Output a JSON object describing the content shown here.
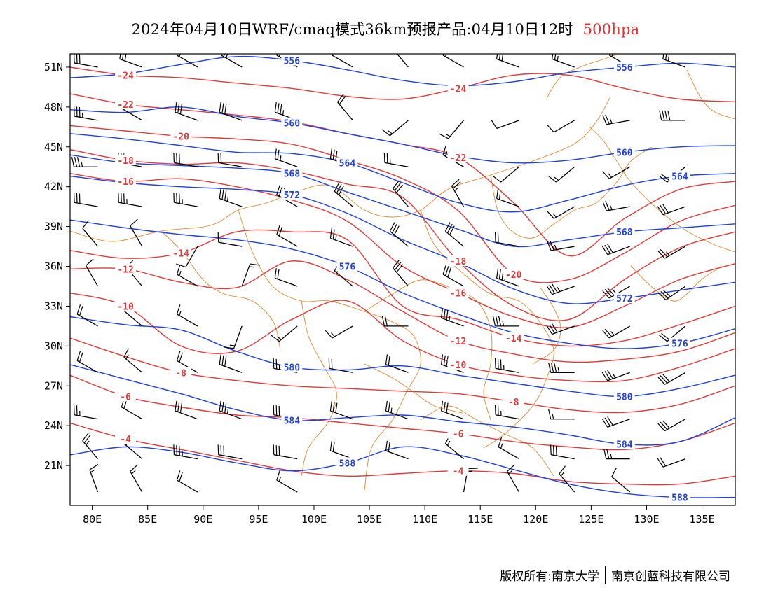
{
  "title": {
    "main": "2024年04月10日WRF/cmaq模式36km预报产品:04月10日12时",
    "level": "500hpa",
    "level_color": "#e03030"
  },
  "footer": {
    "copyright": "版权所有:南京大学",
    "company": "南京创蓝科技有限公司"
  },
  "map": {
    "lon_range": [
      78,
      138
    ],
    "lat_range": [
      18,
      52
    ],
    "lat_ticks": [
      "51N",
      "48N",
      "45N",
      "42N",
      "39N",
      "36N",
      "33N",
      "30N",
      "27N",
      "24N",
      "21N"
    ],
    "lon_ticks": [
      "80E",
      "85E",
      "90E",
      "95E",
      "100E",
      "105E",
      "110E",
      "115E",
      "120E",
      "125E",
      "130E",
      "135E"
    ],
    "colors": {
      "height_contour": "#2040e0",
      "temperature_contour": "#e03a3a",
      "border": "#e08a30",
      "wind": "#000000"
    },
    "height_contours": [
      {
        "label": "556",
        "lats": [
          50.2,
          50.5,
          51.2,
          51.8,
          51.5,
          50.8,
          50.0,
          49.6,
          49.9,
          50.6,
          51.0,
          51.3,
          51.0
        ]
      },
      {
        "label": "560",
        "lats": [
          47.8,
          47.6,
          48.0,
          47.3,
          46.8,
          46.0,
          45.2,
          44.3,
          43.8,
          44.0,
          44.6,
          45.0,
          45.1
        ]
      },
      {
        "label": "564",
        "lats": [
          46.0,
          45.6,
          45.1,
          44.6,
          44.5,
          43.8,
          42.3,
          40.8,
          40.1,
          41.0,
          42.1,
          42.8,
          43.0
        ]
      },
      {
        "label": "568",
        "lats": [
          44.4,
          43.8,
          43.6,
          43.4,
          43.0,
          41.6,
          40.2,
          38.8,
          37.5,
          38.0,
          38.6,
          38.9,
          39.2
        ]
      },
      {
        "label": "572",
        "lats": [
          42.8,
          42.3,
          42.0,
          41.8,
          41.4,
          40.0,
          38.0,
          36.3,
          34.3,
          33.2,
          33.6,
          34.2,
          34.8
        ]
      },
      {
        "label": "576",
        "lats": [
          39.5,
          38.9,
          38.4,
          38.0,
          37.3,
          36.0,
          34.0,
          32.4,
          31.0,
          30.2,
          29.8,
          30.2,
          31.3
        ]
      },
      {
        "label": "580",
        "lats": [
          32.2,
          31.6,
          31.2,
          29.6,
          28.4,
          28.2,
          28.5,
          27.8,
          27.2,
          26.6,
          26.2,
          26.8,
          27.8
        ]
      },
      {
        "label": "584",
        "lats": [
          28.6,
          27.5,
          26.4,
          25.2,
          24.4,
          24.6,
          24.8,
          24.3,
          23.9,
          23.3,
          22.6,
          22.8,
          24.6
        ]
      },
      {
        "label": "588",
        "lats": [
          21.8,
          22.4,
          22.0,
          21.2,
          20.6,
          21.2,
          22.4,
          21.8,
          20.7,
          19.6,
          18.9,
          18.6,
          18.6
        ]
      }
    ],
    "temperature_contours": [
      {
        "label": "-24",
        "lats": [
          51.0,
          50.4,
          50.2,
          49.8,
          49.4,
          48.8,
          48.6,
          49.4,
          50.4,
          50.4,
          49.4,
          48.6,
          48.4
        ]
      },
      {
        "label": "-22",
        "lats": [
          49.0,
          48.2,
          47.8,
          47.4,
          46.9,
          46.0,
          45.2,
          44.2,
          40.8,
          36.8,
          39.6,
          41.8,
          42.4
        ]
      },
      {
        "label": "-20",
        "lats": [
          46.6,
          46.2,
          45.8,
          45.6,
          45.2,
          44.0,
          42.6,
          40.2,
          35.4,
          35.0,
          37.0,
          39.4,
          40.6
        ]
      },
      {
        "label": "-18",
        "lats": [
          44.8,
          44.0,
          43.7,
          43.8,
          43.2,
          42.2,
          41.2,
          36.4,
          33.0,
          32.0,
          35.0,
          37.4,
          38.6
        ]
      },
      {
        "label": "-16",
        "lats": [
          43.0,
          42.4,
          42.6,
          42.0,
          41.0,
          39.4,
          36.0,
          34.0,
          32.2,
          31.4,
          33.0,
          35.0,
          36.2
        ]
      },
      {
        "label": "-14",
        "lats": [
          37.2,
          36.6,
          37.0,
          38.6,
          38.6,
          38.0,
          33.0,
          32.0,
          30.6,
          30.0,
          30.4,
          31.6,
          33.0
        ]
      },
      {
        "label": "-12",
        "lats": [
          35.8,
          35.8,
          34.8,
          34.4,
          36.4,
          35.0,
          32.6,
          30.4,
          29.4,
          28.8,
          29.0,
          29.6,
          31.0
        ]
      },
      {
        "label": "-10",
        "lats": [
          34.0,
          33.0,
          30.0,
          29.6,
          32.0,
          33.4,
          30.4,
          28.6,
          27.8,
          27.4,
          27.4,
          28.4,
          29.8
        ]
      },
      {
        "label": "-8",
        "lats": [
          30.6,
          29.2,
          28.0,
          27.4,
          27.0,
          26.8,
          26.6,
          26.4,
          25.8,
          25.2,
          25.0,
          25.6,
          27.0
        ]
      },
      {
        "label": "-6",
        "lats": [
          27.8,
          26.2,
          25.4,
          24.8,
          24.6,
          24.2,
          23.8,
          23.4,
          22.8,
          22.4,
          22.2,
          22.8,
          24.2
        ]
      },
      {
        "label": "-4",
        "lats": [
          24.2,
          23.0,
          22.2,
          21.4,
          20.6,
          20.2,
          20.4,
          20.6,
          20.4,
          19.8,
          19.6,
          19.6,
          20.2
        ]
      }
    ],
    "wind_barbs": [
      {
        "lon": 80.5,
        "lat": 51,
        "dir": 280,
        "spd": 30
      },
      {
        "lon": 84.5,
        "lat": 51,
        "dir": 290,
        "spd": 30
      },
      {
        "lon": 89.5,
        "lat": 51,
        "dir": 300,
        "spd": 20
      },
      {
        "lon": 93.5,
        "lat": 51,
        "dir": 300,
        "spd": 25
      },
      {
        "lon": 98.5,
        "lat": 51,
        "dir": 300,
        "spd": 20
      },
      {
        "lon": 103.5,
        "lat": 51,
        "dir": 300,
        "spd": 10
      },
      {
        "lon": 108.5,
        "lat": 51,
        "dir": 320,
        "spd": 15
      },
      {
        "lon": 113.5,
        "lat": 51,
        "dir": 300,
        "spd": 15
      },
      {
        "lon": 118.5,
        "lat": 51,
        "dir": 290,
        "spd": 30
      },
      {
        "lon": 123.5,
        "lat": 51,
        "dir": 290,
        "spd": 25
      },
      {
        "lon": 128.5,
        "lat": 51,
        "dir": 300,
        "spd": 15
      },
      {
        "lon": 133.5,
        "lat": 51,
        "dir": 290,
        "spd": 30
      },
      {
        "lon": 80.5,
        "lat": 47,
        "dir": 280,
        "spd": 35
      },
      {
        "lon": 84.5,
        "lat": 47,
        "dir": 300,
        "spd": 20
      },
      {
        "lon": 89.5,
        "lat": 47,
        "dir": 290,
        "spd": 30
      },
      {
        "lon": 93.5,
        "lat": 47,
        "dir": 290,
        "spd": 30
      },
      {
        "lon": 98.5,
        "lat": 47,
        "dir": 290,
        "spd": 35
      },
      {
        "lon": 103.5,
        "lat": 47,
        "dir": 320,
        "spd": 20
      },
      {
        "lon": 108.5,
        "lat": 47,
        "dir": 230,
        "spd": 15
      },
      {
        "lon": 113.5,
        "lat": 47,
        "dir": 220,
        "spd": 15
      },
      {
        "lon": 118.5,
        "lat": 47,
        "dir": 250,
        "spd": 10
      },
      {
        "lon": 123.5,
        "lat": 47,
        "dir": 240,
        "spd": 10
      },
      {
        "lon": 128.5,
        "lat": 47,
        "dir": 260,
        "spd": 25
      },
      {
        "lon": 133.5,
        "lat": 47,
        "dir": 270,
        "spd": 40
      },
      {
        "lon": 80.5,
        "lat": 43.5,
        "dir": 270,
        "spd": 35
      },
      {
        "lon": 84.5,
        "lat": 43.5,
        "dir": 280,
        "spd": 35
      },
      {
        "lon": 89.5,
        "lat": 43.5,
        "dir": 280,
        "spd": 30
      },
      {
        "lon": 93.5,
        "lat": 43.5,
        "dir": 280,
        "spd": 20
      },
      {
        "lon": 98.5,
        "lat": 43.5,
        "dir": 290,
        "spd": 25
      },
      {
        "lon": 103.5,
        "lat": 43.5,
        "dir": 290,
        "spd": 30
      },
      {
        "lon": 108.5,
        "lat": 43.5,
        "dir": 280,
        "spd": 25
      },
      {
        "lon": 113.5,
        "lat": 43.5,
        "dir": 300,
        "spd": 15
      },
      {
        "lon": 118.5,
        "lat": 43.5,
        "dir": 230,
        "spd": 10
      },
      {
        "lon": 123.5,
        "lat": 43.5,
        "dir": 230,
        "spd": 15
      },
      {
        "lon": 128.5,
        "lat": 43.5,
        "dir": 240,
        "spd": 15
      },
      {
        "lon": 133.5,
        "lat": 43.5,
        "dir": 230,
        "spd": 20
      },
      {
        "lon": 80.5,
        "lat": 40.5,
        "dir": 280,
        "spd": 30
      },
      {
        "lon": 84.5,
        "lat": 40.5,
        "dir": 280,
        "spd": 35
      },
      {
        "lon": 89.5,
        "lat": 40.5,
        "dir": 280,
        "spd": 35
      },
      {
        "lon": 93.5,
        "lat": 40.5,
        "dir": 290,
        "spd": 35
      },
      {
        "lon": 98.5,
        "lat": 40.5,
        "dir": 300,
        "spd": 30
      },
      {
        "lon": 103.5,
        "lat": 40.5,
        "dir": 310,
        "spd": 30
      },
      {
        "lon": 108.5,
        "lat": 40.5,
        "dir": 320,
        "spd": 30
      },
      {
        "lon": 113.5,
        "lat": 40.5,
        "dir": 330,
        "spd": 25
      },
      {
        "lon": 118.5,
        "lat": 40.5,
        "dir": 290,
        "spd": 15
      },
      {
        "lon": 123.5,
        "lat": 40.5,
        "dir": 240,
        "spd": 15
      },
      {
        "lon": 128.5,
        "lat": 40.5,
        "dir": 260,
        "spd": 25
      },
      {
        "lon": 133.5,
        "lat": 40.5,
        "dir": 250,
        "spd": 30
      },
      {
        "lon": 80.5,
        "lat": 37.5,
        "dir": 320,
        "spd": 10
      },
      {
        "lon": 84.5,
        "lat": 37.5,
        "dir": 330,
        "spd": 10
      },
      {
        "lon": 89.5,
        "lat": 37.5,
        "dir": 210,
        "spd": 10
      },
      {
        "lon": 93.5,
        "lat": 37.5,
        "dir": 280,
        "spd": 15
      },
      {
        "lon": 98.5,
        "lat": 37.5,
        "dir": 300,
        "spd": 20
      },
      {
        "lon": 103.5,
        "lat": 37.5,
        "dir": 290,
        "spd": 25
      },
      {
        "lon": 108.5,
        "lat": 37.5,
        "dir": 310,
        "spd": 30
      },
      {
        "lon": 113.5,
        "lat": 37.5,
        "dir": 310,
        "spd": 30
      },
      {
        "lon": 118.5,
        "lat": 37.5,
        "dir": 280,
        "spd": 20
      },
      {
        "lon": 123.5,
        "lat": 37.5,
        "dir": 260,
        "spd": 25
      },
      {
        "lon": 128.5,
        "lat": 37.5,
        "dir": 250,
        "spd": 30
      },
      {
        "lon": 133.5,
        "lat": 37.5,
        "dir": 240,
        "spd": 25
      },
      {
        "lon": 80.5,
        "lat": 34.5,
        "dir": 330,
        "spd": 10
      },
      {
        "lon": 84.5,
        "lat": 34.5,
        "dir": 320,
        "spd": 10
      },
      {
        "lon": 89.5,
        "lat": 34.5,
        "dir": 300,
        "spd": 15
      },
      {
        "lon": 93.5,
        "lat": 34.5,
        "dir": 20,
        "spd": 15
      },
      {
        "lon": 98.5,
        "lat": 34.5,
        "dir": 290,
        "spd": 20
      },
      {
        "lon": 103.5,
        "lat": 34.5,
        "dir": 310,
        "spd": 20
      },
      {
        "lon": 108.5,
        "lat": 34.5,
        "dir": 320,
        "spd": 30
      },
      {
        "lon": 113.5,
        "lat": 34.5,
        "dir": 300,
        "spd": 30
      },
      {
        "lon": 118.5,
        "lat": 34.5,
        "dir": 290,
        "spd": 35
      },
      {
        "lon": 123.5,
        "lat": 34.5,
        "dir": 250,
        "spd": 35
      },
      {
        "lon": 128.5,
        "lat": 34.5,
        "dir": 240,
        "spd": 35
      },
      {
        "lon": 133.5,
        "lat": 34.5,
        "dir": 235,
        "spd": 30
      },
      {
        "lon": 80.5,
        "lat": 31.5,
        "dir": 300,
        "spd": 20
      },
      {
        "lon": 84.5,
        "lat": 31.5,
        "dir": 310,
        "spd": 10
      },
      {
        "lon": 89.5,
        "lat": 31.5,
        "dir": 300,
        "spd": 15
      },
      {
        "lon": 93.5,
        "lat": 31.5,
        "dir": 200,
        "spd": 15
      },
      {
        "lon": 98.5,
        "lat": 31.5,
        "dir": 230,
        "spd": 15
      },
      {
        "lon": 103.5,
        "lat": 31.5,
        "dir": 240,
        "spd": 15
      },
      {
        "lon": 108.5,
        "lat": 31.5,
        "dir": 270,
        "spd": 20
      },
      {
        "lon": 113.5,
        "lat": 31.5,
        "dir": 290,
        "spd": 35
      },
      {
        "lon": 118.5,
        "lat": 31.5,
        "dir": 270,
        "spd": 35
      },
      {
        "lon": 123.5,
        "lat": 31.5,
        "dir": 250,
        "spd": 30
      },
      {
        "lon": 128.5,
        "lat": 31.5,
        "dir": 240,
        "spd": 25
      },
      {
        "lon": 133.5,
        "lat": 31.5,
        "dir": 230,
        "spd": 20
      },
      {
        "lon": 80.5,
        "lat": 28,
        "dir": 300,
        "spd": 20
      },
      {
        "lon": 84.5,
        "lat": 28,
        "dir": 310,
        "spd": 15
      },
      {
        "lon": 89.5,
        "lat": 28,
        "dir": 300,
        "spd": 20
      },
      {
        "lon": 93.5,
        "lat": 28,
        "dir": 290,
        "spd": 30
      },
      {
        "lon": 98.5,
        "lat": 28,
        "dir": 280,
        "spd": 25
      },
      {
        "lon": 103.5,
        "lat": 28,
        "dir": 280,
        "spd": 20
      },
      {
        "lon": 108.5,
        "lat": 28,
        "dir": 290,
        "spd": 20
      },
      {
        "lon": 113.5,
        "lat": 28,
        "dir": 290,
        "spd": 35
      },
      {
        "lon": 118.5,
        "lat": 28,
        "dir": 280,
        "spd": 35
      },
      {
        "lon": 123.5,
        "lat": 28,
        "dir": 270,
        "spd": 35
      },
      {
        "lon": 128.5,
        "lat": 28,
        "dir": 250,
        "spd": 35
      },
      {
        "lon": 133.5,
        "lat": 28,
        "dir": 240,
        "spd": 30
      },
      {
        "lon": 80.5,
        "lat": 24.5,
        "dir": 280,
        "spd": 25
      },
      {
        "lon": 84.5,
        "lat": 24.5,
        "dir": 300,
        "spd": 20
      },
      {
        "lon": 89.5,
        "lat": 24.5,
        "dir": 290,
        "spd": 30
      },
      {
        "lon": 93.5,
        "lat": 24.5,
        "dir": 290,
        "spd": 35
      },
      {
        "lon": 98.5,
        "lat": 24.5,
        "dir": 280,
        "spd": 30
      },
      {
        "lon": 103.5,
        "lat": 24.5,
        "dir": 290,
        "spd": 30
      },
      {
        "lon": 108.5,
        "lat": 24.5,
        "dir": 290,
        "spd": 25
      },
      {
        "lon": 113.5,
        "lat": 24.5,
        "dir": 290,
        "spd": 30
      },
      {
        "lon": 118.5,
        "lat": 24.5,
        "dir": 280,
        "spd": 25
      },
      {
        "lon": 123.5,
        "lat": 24.5,
        "dir": 270,
        "spd": 15
      },
      {
        "lon": 128.5,
        "lat": 24.5,
        "dir": 250,
        "spd": 30
      },
      {
        "lon": 133.5,
        "lat": 24.5,
        "dir": 240,
        "spd": 30
      },
      {
        "lon": 80.5,
        "lat": 21.5,
        "dir": 320,
        "spd": 25
      },
      {
        "lon": 84.5,
        "lat": 21.5,
        "dir": 310,
        "spd": 15
      },
      {
        "lon": 89.5,
        "lat": 21.5,
        "dir": 280,
        "spd": 35
      },
      {
        "lon": 93.5,
        "lat": 21.5,
        "dir": 280,
        "spd": 30
      },
      {
        "lon": 98.5,
        "lat": 21.5,
        "dir": 280,
        "spd": 30
      },
      {
        "lon": 103.5,
        "lat": 21.5,
        "dir": 290,
        "spd": 20
      },
      {
        "lon": 108.5,
        "lat": 21.5,
        "dir": 290,
        "spd": 20
      },
      {
        "lon": 113.5,
        "lat": 21.5,
        "dir": 310,
        "spd": 15
      },
      {
        "lon": 118.5,
        "lat": 21.5,
        "dir": 300,
        "spd": 15
      },
      {
        "lon": 123.5,
        "lat": 21.5,
        "dir": 280,
        "spd": 30
      },
      {
        "lon": 128.5,
        "lat": 21.5,
        "dir": 270,
        "spd": 25
      },
      {
        "lon": 133.5,
        "lat": 21.5,
        "dir": 250,
        "spd": 20
      },
      {
        "lon": 80.5,
        "lat": 19,
        "dir": 340,
        "spd": 15
      },
      {
        "lon": 84.5,
        "lat": 19,
        "dir": 330,
        "spd": 15
      },
      {
        "lon": 89.5,
        "lat": 19,
        "dir": 300,
        "spd": 20
      },
      {
        "lon": 98.5,
        "lat": 19,
        "dir": 300,
        "spd": 15
      },
      {
        "lon": 113.5,
        "lat": 19,
        "dir": 10,
        "spd": 15
      },
      {
        "lon": 118.5,
        "lat": 19,
        "dir": 330,
        "spd": 15
      },
      {
        "lon": 123.5,
        "lat": 19,
        "dir": 320,
        "spd": 15
      },
      {
        "lon": 128.5,
        "lat": 19,
        "dir": 310,
        "spd": 10
      }
    ]
  }
}
